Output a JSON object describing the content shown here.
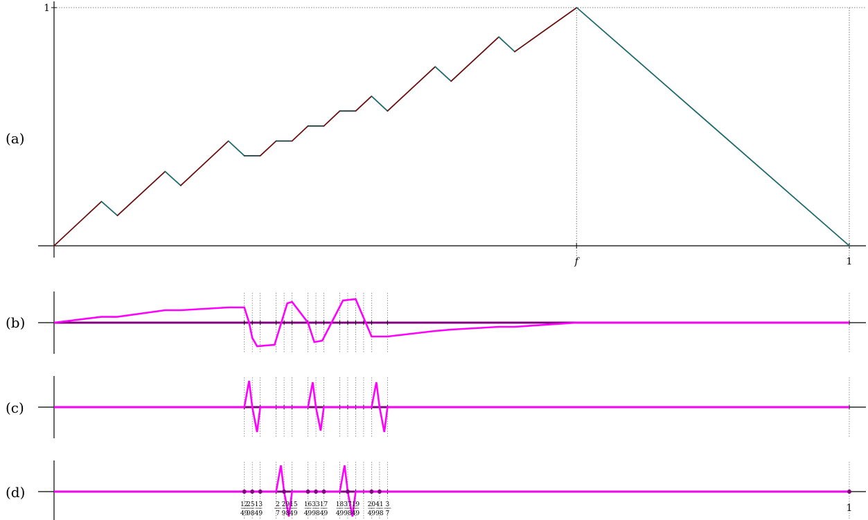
{
  "chart_data": [
    {
      "panel": "(a)",
      "type": "line",
      "x_ticks": [
        "f",
        "1"
      ],
      "y_ticks": [
        "1"
      ],
      "xlim": [
        0,
        1
      ],
      "ylim": [
        0,
        1
      ],
      "f_value": 0.657,
      "colors": {
        "rising": "#6b1010",
        "falling": "#1f6b6b",
        "flat": "#1a3a3a",
        "axis": "#000000",
        "guide": "#555555"
      },
      "series": [
        {
          "x": [
            0,
            0.0597,
            0.0797,
            0.1397,
            0.1593,
            0.2193,
            0.2393,
            0.2593,
            0.2793,
            0.2993,
            0.3193,
            0.3393,
            0.3593,
            0.3793,
            0.3993,
            0.4193,
            0.4793,
            0.4993,
            0.5593,
            0.5793,
            0.6573,
            1
          ],
          "y": [
            0,
            0.186,
            0.127,
            0.312,
            0.253,
            0.44,
            0.378,
            0.378,
            0.44,
            0.44,
            0.503,
            0.503,
            0.566,
            0.566,
            0.628,
            0.566,
            0.752,
            0.691,
            0.877,
            0.815,
            1,
            0
          ]
        }
      ]
    },
    {
      "panel": "(b)",
      "type": "line",
      "color": "#ff00ff",
      "baseline_color": "#800080",
      "series": [
        {
          "x": [
            0,
            0.0597,
            0.0797,
            0.1397,
            0.1593,
            0.2193,
            0.2393,
            0.2453,
            0.2493,
            0.2553,
            0.2773,
            0.2933,
            0.2993,
            0.3193,
            0.3273,
            0.3373,
            0.3633,
            0.3793,
            0.3993,
            0.4193,
            0.4793,
            0.4993,
            0.5593,
            0.5793,
            0.6573,
            1
          ],
          "y": [
            0,
            0.21,
            0.21,
            0.45,
            0.45,
            0.55,
            0.55,
            0,
            -0.55,
            -0.85,
            -0.8,
            0.7,
            0.75,
            0,
            -0.7,
            -0.65,
            0.8,
            0.85,
            -0.5,
            -0.5,
            -0.3,
            -0.25,
            -0.15,
            -0.15,
            0,
            0
          ]
        }
      ],
      "guide_x": [
        0.2393,
        0.2493,
        0.2593,
        0.2793,
        0.2893,
        0.2993,
        0.3193,
        0.3293,
        0.3393,
        0.3593,
        0.3693,
        0.3793,
        0.3893,
        0.3993,
        0.4193,
        1
      ]
    },
    {
      "panel": "(c)",
      "type": "line",
      "color": "#ff00ff",
      "baseline_color": "#800080",
      "series": [
        {
          "x": [
            0,
            0.2393,
            0.2453,
            0.2493,
            0.2553,
            0.2593,
            0.3193,
            0.3253,
            0.3293,
            0.3353,
            0.3393,
            0.3993,
            0.4053,
            0.4093,
            0.4153,
            0.4193,
            1
          ],
          "y": [
            0,
            0,
            0.95,
            0,
            -0.9,
            0,
            0,
            0.9,
            0,
            -0.85,
            0,
            0,
            0.9,
            0,
            -0.9,
            0,
            0
          ]
        }
      ],
      "guide_x": [
        0.2393,
        0.2493,
        0.2593,
        0.2793,
        0.2893,
        0.2993,
        0.3193,
        0.3293,
        0.3393,
        0.3593,
        0.3693,
        0.3793,
        0.3893,
        0.3993,
        0.4193,
        1
      ]
    },
    {
      "panel": "(d)",
      "type": "line",
      "color": "#ff00ff",
      "baseline_color": "#800080",
      "series": [
        {
          "x": [
            0,
            0.2793,
            0.2853,
            0.2893,
            0.2953,
            0.2993,
            0.3593,
            0.3653,
            0.3693,
            0.3753,
            0.3793,
            1
          ],
          "y": [
            0,
            0,
            0.95,
            0,
            -0.9,
            0,
            0,
            0.95,
            0,
            -0.9,
            0,
            0
          ]
        }
      ],
      "dots_x": [
        0.2393,
        0.2493,
        0.2593,
        0.2893,
        0.3193,
        0.3293,
        0.3393,
        0.3693,
        0.3993,
        0.4093,
        1
      ],
      "guide_x": [
        0.2393,
        0.2493,
        0.2593,
        0.2793,
        0.2893,
        0.2993,
        0.3193,
        0.3293,
        0.3393,
        0.3593,
        0.3693,
        0.3793,
        0.3893,
        0.3993,
        0.4093,
        0.4193,
        1
      ],
      "x_tick_fractions": [
        {
          "x": 0.2393,
          "num": "12",
          "den": "49"
        },
        {
          "x": 0.2473,
          "num": "25",
          "den": "98"
        },
        {
          "x": 0.2573,
          "num": "13",
          "den": "49"
        },
        {
          "x": 0.2813,
          "num": "2",
          "den": "7"
        },
        {
          "x": 0.2913,
          "num": "29",
          "den": "98"
        },
        {
          "x": 0.3013,
          "num": "15",
          "den": "49"
        },
        {
          "x": 0.3193,
          "num": "16",
          "den": "49"
        },
        {
          "x": 0.3293,
          "num": "33",
          "den": "98"
        },
        {
          "x": 0.3393,
          "num": "17",
          "den": "49"
        },
        {
          "x": 0.3593,
          "num": "18",
          "den": "49"
        },
        {
          "x": 0.3693,
          "num": "37",
          "den": "98"
        },
        {
          "x": 0.3793,
          "num": "19",
          "den": "49"
        },
        {
          "x": 0.3993,
          "num": "20",
          "den": "49"
        },
        {
          "x": 0.4093,
          "num": "41",
          "den": "98"
        },
        {
          "x": 0.4193,
          "num": "3",
          "den": "7"
        }
      ],
      "x_ticks": [
        "1"
      ]
    }
  ],
  "labels": {
    "panel_a": "(a)",
    "panel_b": "(b)",
    "panel_c": "(c)",
    "panel_d": "(d)"
  }
}
